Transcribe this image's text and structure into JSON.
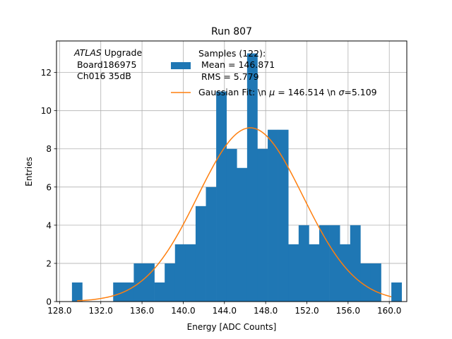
{
  "chart_data": {
    "type": "bar",
    "title": "Run 807",
    "xlabel": "Energy [ADC Counts]",
    "ylabel": "Entries",
    "xlim": [
      127.7,
      161.7
    ],
    "ylim": [
      0,
      13.65
    ],
    "grid": true,
    "x_ticks": [
      128.0,
      132.0,
      136.0,
      140.0,
      144.0,
      148.0,
      152.0,
      156.0,
      160.0
    ],
    "x_tick_labels": [
      "128.0",
      "132.0",
      "136.0",
      "140.0",
      "144.0",
      "148.0",
      "152.0",
      "156.0",
      "160.0"
    ],
    "y_ticks": [
      0,
      2,
      4,
      6,
      8,
      10,
      12
    ],
    "y_tick_labels": [
      "0",
      "2",
      "4",
      "6",
      "8",
      "10",
      "12"
    ],
    "bin_edges": [
      129.2,
      130.2,
      131.2,
      132.2,
      133.2,
      134.2,
      135.2,
      136.2,
      137.2,
      138.2,
      139.2,
      140.2,
      141.2,
      142.2,
      143.2,
      144.2,
      145.2,
      146.2,
      147.2,
      148.2,
      149.2,
      150.2,
      151.2,
      152.2,
      153.2,
      154.2,
      155.2,
      156.2,
      157.2,
      158.2,
      159.2,
      160.2,
      161.2
    ],
    "series": [
      {
        "name": "Samples (122):\n Mean = 146.871\n RMS = 5.779",
        "type": "histogram",
        "color": "#1f77b4",
        "values": [
          1,
          0,
          0,
          0,
          1,
          1,
          2,
          2,
          1,
          2,
          3,
          3,
          5,
          6,
          11,
          8,
          7,
          13,
          8,
          9,
          9,
          3,
          4,
          3,
          4,
          4,
          3,
          4,
          2,
          2,
          0,
          1
        ]
      },
      {
        "name": "Gaussian Fit: \\n $\\mu$ = 146.514 \\n $\\sigma$=5.109",
        "type": "line",
        "color": "#ff7f0e",
        "function": "gaussian",
        "amplitude": 9.1,
        "mu": 146.514,
        "sigma": 5.109,
        "x_range": [
          129.7,
          160.2
        ]
      }
    ],
    "annotation": {
      "italic": "ATLAS",
      "rest": " Upgrade",
      "lines": [
        " Board186975",
        " Ch016 35dB"
      ]
    },
    "legend": {
      "placement": "top-right",
      "entries": [
        {
          "marker": "patch",
          "lines": [
            "Samples (122):",
            " Mean = 146.871",
            " RMS = 5.779"
          ]
        },
        {
          "marker": "line",
          "prefix": "Gaussian Fit: \\n ",
          "mu_value": " = 146.514 \\n ",
          "sigma_value": "=5.109"
        }
      ]
    }
  }
}
